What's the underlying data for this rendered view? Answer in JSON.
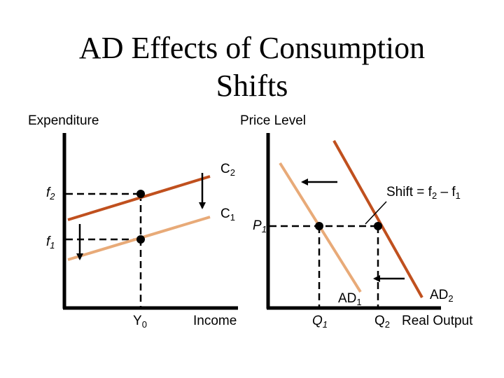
{
  "slide": {
    "title_line1": "AD Effects of Consumption",
    "title_line2": "Shifts"
  },
  "left_panel": {
    "y_axis_label": "Expenditure",
    "x_axis_label": "Income",
    "curves": [
      {
        "name": "C",
        "sub": "2",
        "color": "#c0501e"
      },
      {
        "name": "C",
        "sub": "1",
        "color": "#e8aa78"
      }
    ],
    "levels": [
      {
        "name": "f",
        "sub": "2"
      },
      {
        "name": "f",
        "sub": "1"
      }
    ],
    "income": {
      "name": "Y",
      "sub": "0"
    }
  },
  "right_panel": {
    "y_axis_label": "Price Level",
    "x_axis_label": "Real Output",
    "curves": [
      {
        "name": "AD",
        "sub": "1",
        "color": "#e8aa78"
      },
      {
        "name": "AD",
        "sub": "2",
        "color": "#c0501e"
      }
    ],
    "price": {
      "name": "P",
      "sub": "1"
    },
    "outputs": [
      {
        "name": "Q",
        "sub": "1"
      },
      {
        "name": "Q",
        "sub": "2"
      }
    ],
    "shift_label": {
      "prefix": "Shift = ",
      "a_name": "f",
      "a_sub": "2",
      "sep": " – ",
      "b_name": "f",
      "b_sub": "1"
    }
  }
}
